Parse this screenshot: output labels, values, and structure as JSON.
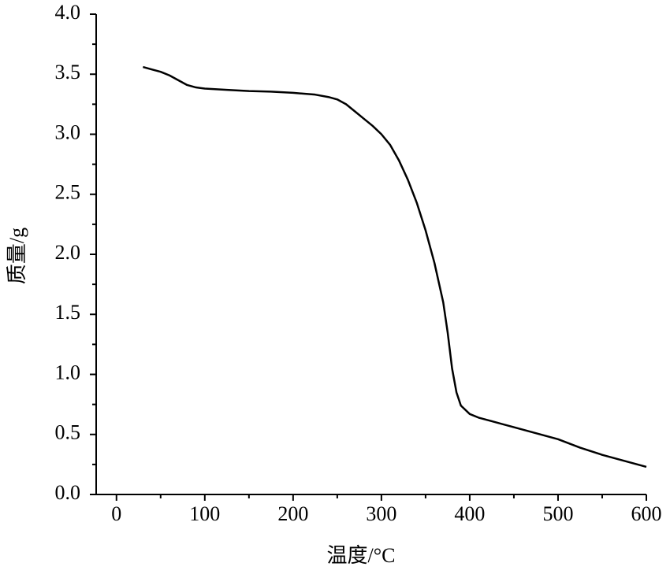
{
  "chart_data": {
    "type": "line",
    "x_label": "温度/°C",
    "y_label": "质量/g",
    "x": [
      30,
      40,
      50,
      60,
      70,
      80,
      90,
      100,
      125,
      150,
      175,
      200,
      225,
      240,
      250,
      260,
      270,
      280,
      290,
      300,
      310,
      320,
      330,
      340,
      350,
      360,
      370,
      375,
      380,
      385,
      390,
      400,
      410,
      425,
      450,
      475,
      500,
      525,
      550,
      575,
      600
    ],
    "values": [
      3.56,
      3.54,
      3.52,
      3.49,
      3.45,
      3.41,
      3.39,
      3.38,
      3.37,
      3.36,
      3.355,
      3.345,
      3.33,
      3.31,
      3.29,
      3.25,
      3.19,
      3.13,
      3.07,
      3.0,
      2.91,
      2.78,
      2.62,
      2.43,
      2.2,
      1.93,
      1.6,
      1.35,
      1.05,
      0.85,
      0.74,
      0.67,
      0.64,
      0.61,
      0.56,
      0.51,
      0.46,
      0.39,
      0.33,
      0.28,
      0.23
    ],
    "color": "#000000",
    "xlim": [
      -23,
      600
    ],
    "ylim": [
      0,
      4
    ],
    "xticks": [
      0,
      100,
      200,
      300,
      400,
      500,
      600
    ],
    "yticks": [
      {
        "value": 0,
        "label": "0.0"
      },
      0.5,
      {
        "value": 1,
        "label": "1.0"
      },
      1.5,
      {
        "value": 2,
        "label": "2.0"
      },
      2.5,
      {
        "value": 3,
        "label": "3.0"
      },
      3.5,
      {
        "value": 4,
        "label": "4.0"
      }
    ],
    "xminorticks": [
      50,
      150,
      250,
      350,
      450,
      550
    ],
    "yminorticks": [
      0.25,
      0.75,
      1.25,
      1.75,
      2.25,
      2.75,
      3.25,
      3.75
    ]
  }
}
